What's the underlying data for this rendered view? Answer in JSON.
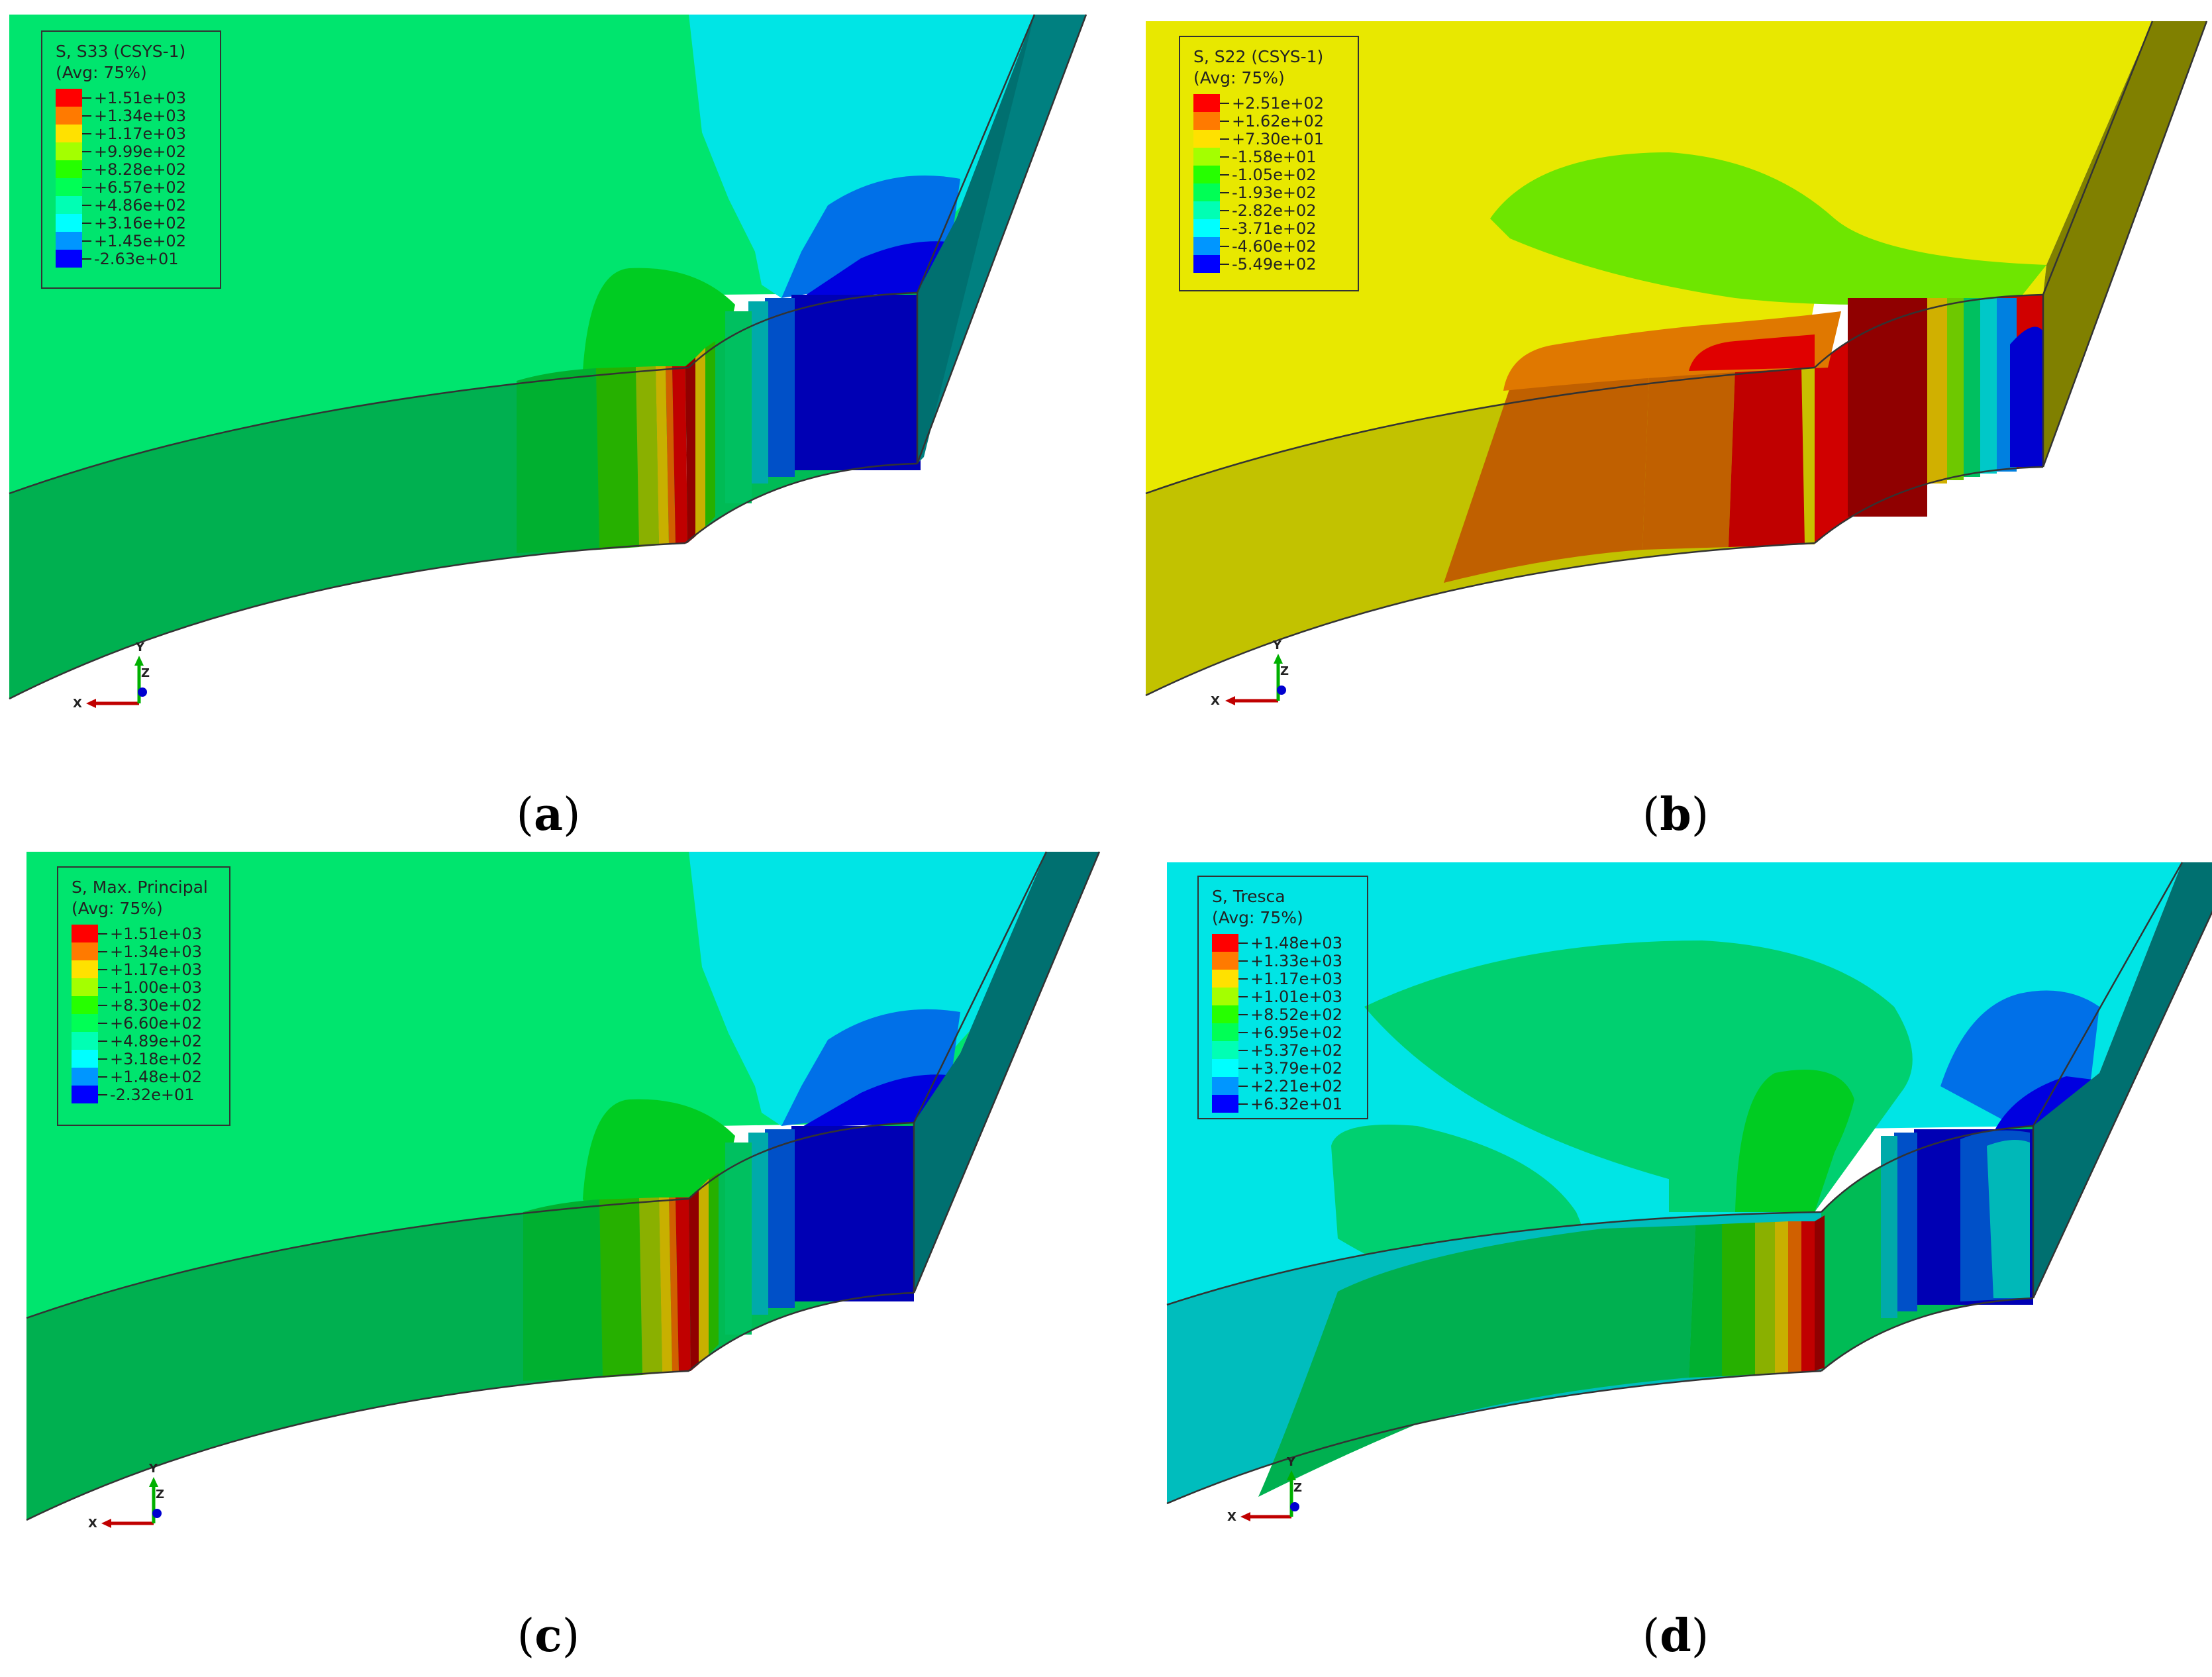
{
  "panels": [
    {
      "id": "a",
      "caption_letter": "a",
      "legend_title": "S, S33 (CSYS-1)",
      "legend_avg": "(Avg: 75%)",
      "legend_values": [
        "+1.51e+03",
        "+1.34e+03",
        "+1.17e+03",
        "+9.99e+02",
        "+8.28e+02",
        "+6.57e+02",
        "+4.86e+02",
        "+3.16e+02",
        "+1.45e+02",
        "-2.63e+01"
      ]
    },
    {
      "id": "b",
      "caption_letter": "b",
      "legend_title": "S, S22 (CSYS-1)",
      "legend_avg": "(Avg: 75%)",
      "legend_values": [
        "+2.51e+02",
        "+1.62e+02",
        "+7.30e+01",
        "-1.58e+01",
        "-1.05e+02",
        "-1.93e+02",
        "-2.82e+02",
        "-3.71e+02",
        "-4.60e+02",
        "-5.49e+02"
      ]
    },
    {
      "id": "c",
      "caption_letter": "c",
      "legend_title": "S, Max. Principal",
      "legend_avg": "(Avg: 75%)",
      "legend_values": [
        "+1.51e+03",
        "+1.34e+03",
        "+1.17e+03",
        "+1.00e+03",
        "+8.30e+02",
        "+6.60e+02",
        "+4.89e+02",
        "+3.18e+02",
        "+1.48e+02",
        "-2.32e+01"
      ]
    },
    {
      "id": "d",
      "caption_letter": "d",
      "legend_title": "S, Tresca",
      "legend_avg": "(Avg: 75%)",
      "legend_values": [
        "+1.48e+03",
        "+1.33e+03",
        "+1.17e+03",
        "+1.01e+03",
        "+8.52e+02",
        "+6.95e+02",
        "+5.37e+02",
        "+3.79e+02",
        "+2.21e+02",
        "+6.32e+01"
      ]
    }
  ],
  "axis_labels": {
    "x": "X",
    "y": "Y",
    "z": "Z"
  },
  "colors": {
    "scale": [
      "#ff0000",
      "#ff7a00",
      "#ffe100",
      "#a4ff00",
      "#26ff00",
      "#00ff55",
      "#00ffb4",
      "#00ffff",
      "#0096ff",
      "#0000ff"
    ],
    "s33_face": "#00e56e",
    "s22_face": "#e8e800",
    "tresca_face": "#00e5e5"
  }
}
